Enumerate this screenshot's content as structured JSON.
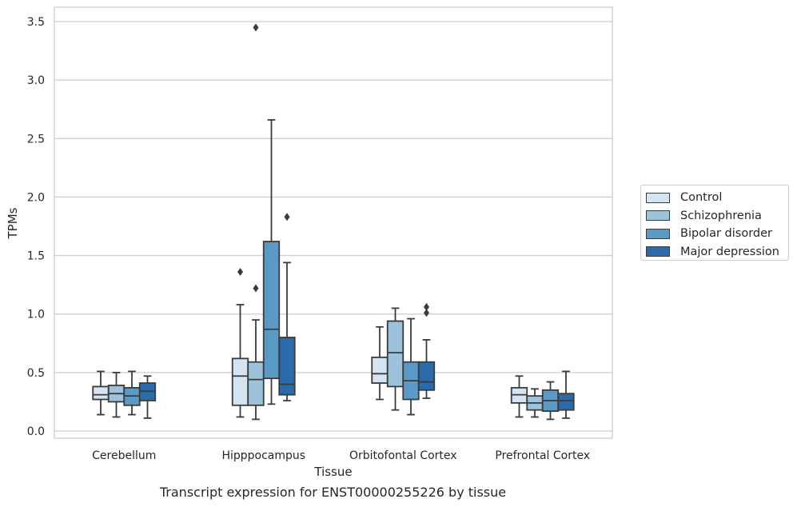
{
  "caption": "Transcript expression for ENST00000255226 by tissue",
  "chart_data": {
    "type": "box",
    "xlabel": "Tissue",
    "ylabel": "TPMs",
    "ylim": [
      -0.05,
      3.62
    ],
    "yticks": [
      "0.0",
      "0.5",
      "1.0",
      "1.5",
      "2.0",
      "2.5",
      "3.0",
      "3.5"
    ],
    "grid": "horizontal",
    "legend_position": "right",
    "categories": [
      "Cerebellum",
      "Hipppocampus",
      "Orbitofontal Cortex",
      "Prefrontal Cortex"
    ],
    "series": [
      {
        "name": "Control",
        "color": "#d4e4f2",
        "boxes": [
          {
            "whisker_low": 0.14,
            "q1": 0.27,
            "median": 0.31,
            "q3": 0.38,
            "whisker_high": 0.51,
            "outliers": []
          },
          {
            "whisker_low": 0.12,
            "q1": 0.22,
            "median": 0.47,
            "q3": 0.62,
            "whisker_high": 1.08,
            "outliers": [
              1.36
            ]
          },
          {
            "whisker_low": 0.27,
            "q1": 0.41,
            "median": 0.49,
            "q3": 0.63,
            "whisker_high": 0.89,
            "outliers": []
          },
          {
            "whisker_low": 0.12,
            "q1": 0.24,
            "median": 0.31,
            "q3": 0.37,
            "whisker_high": 0.47,
            "outliers": []
          }
        ]
      },
      {
        "name": "Schizophrenia",
        "color": "#9dc3db",
        "boxes": [
          {
            "whisker_low": 0.12,
            "q1": 0.25,
            "median": 0.32,
            "q3": 0.39,
            "whisker_high": 0.5,
            "outliers": []
          },
          {
            "whisker_low": 0.1,
            "q1": 0.22,
            "median": 0.44,
            "q3": 0.59,
            "whisker_high": 0.95,
            "outliers": [
              1.22,
              3.45
            ]
          },
          {
            "whisker_low": 0.18,
            "q1": 0.38,
            "median": 0.67,
            "q3": 0.94,
            "whisker_high": 1.05,
            "outliers": []
          },
          {
            "whisker_low": 0.12,
            "q1": 0.18,
            "median": 0.24,
            "q3": 0.3,
            "whisker_high": 0.36,
            "outliers": []
          }
        ]
      },
      {
        "name": "Bipolar disorder",
        "color": "#5b9ac6",
        "boxes": [
          {
            "whisker_low": 0.14,
            "q1": 0.22,
            "median": 0.3,
            "q3": 0.37,
            "whisker_high": 0.51,
            "outliers": []
          },
          {
            "whisker_low": 0.23,
            "q1": 0.45,
            "median": 0.87,
            "q3": 1.62,
            "whisker_high": 2.66,
            "outliers": []
          },
          {
            "whisker_low": 0.14,
            "q1": 0.27,
            "median": 0.43,
            "q3": 0.59,
            "whisker_high": 0.96,
            "outliers": []
          },
          {
            "whisker_low": 0.1,
            "q1": 0.17,
            "median": 0.26,
            "q3": 0.35,
            "whisker_high": 0.42,
            "outliers": []
          }
        ]
      },
      {
        "name": "Major depression",
        "color": "#2b6ba9",
        "boxes": [
          {
            "whisker_low": 0.11,
            "q1": 0.26,
            "median": 0.34,
            "q3": 0.41,
            "whisker_high": 0.47,
            "outliers": []
          },
          {
            "whisker_low": 0.26,
            "q1": 0.31,
            "median": 0.4,
            "q3": 0.8,
            "whisker_high": 1.44,
            "outliers": [
              1.83
            ]
          },
          {
            "whisker_low": 0.28,
            "q1": 0.35,
            "median": 0.42,
            "q3": 0.59,
            "whisker_high": 0.78,
            "outliers": [
              1.01,
              1.06
            ]
          },
          {
            "whisker_low": 0.11,
            "q1": 0.18,
            "median": 0.26,
            "q3": 0.32,
            "whisker_high": 0.51,
            "outliers": []
          }
        ]
      }
    ]
  }
}
